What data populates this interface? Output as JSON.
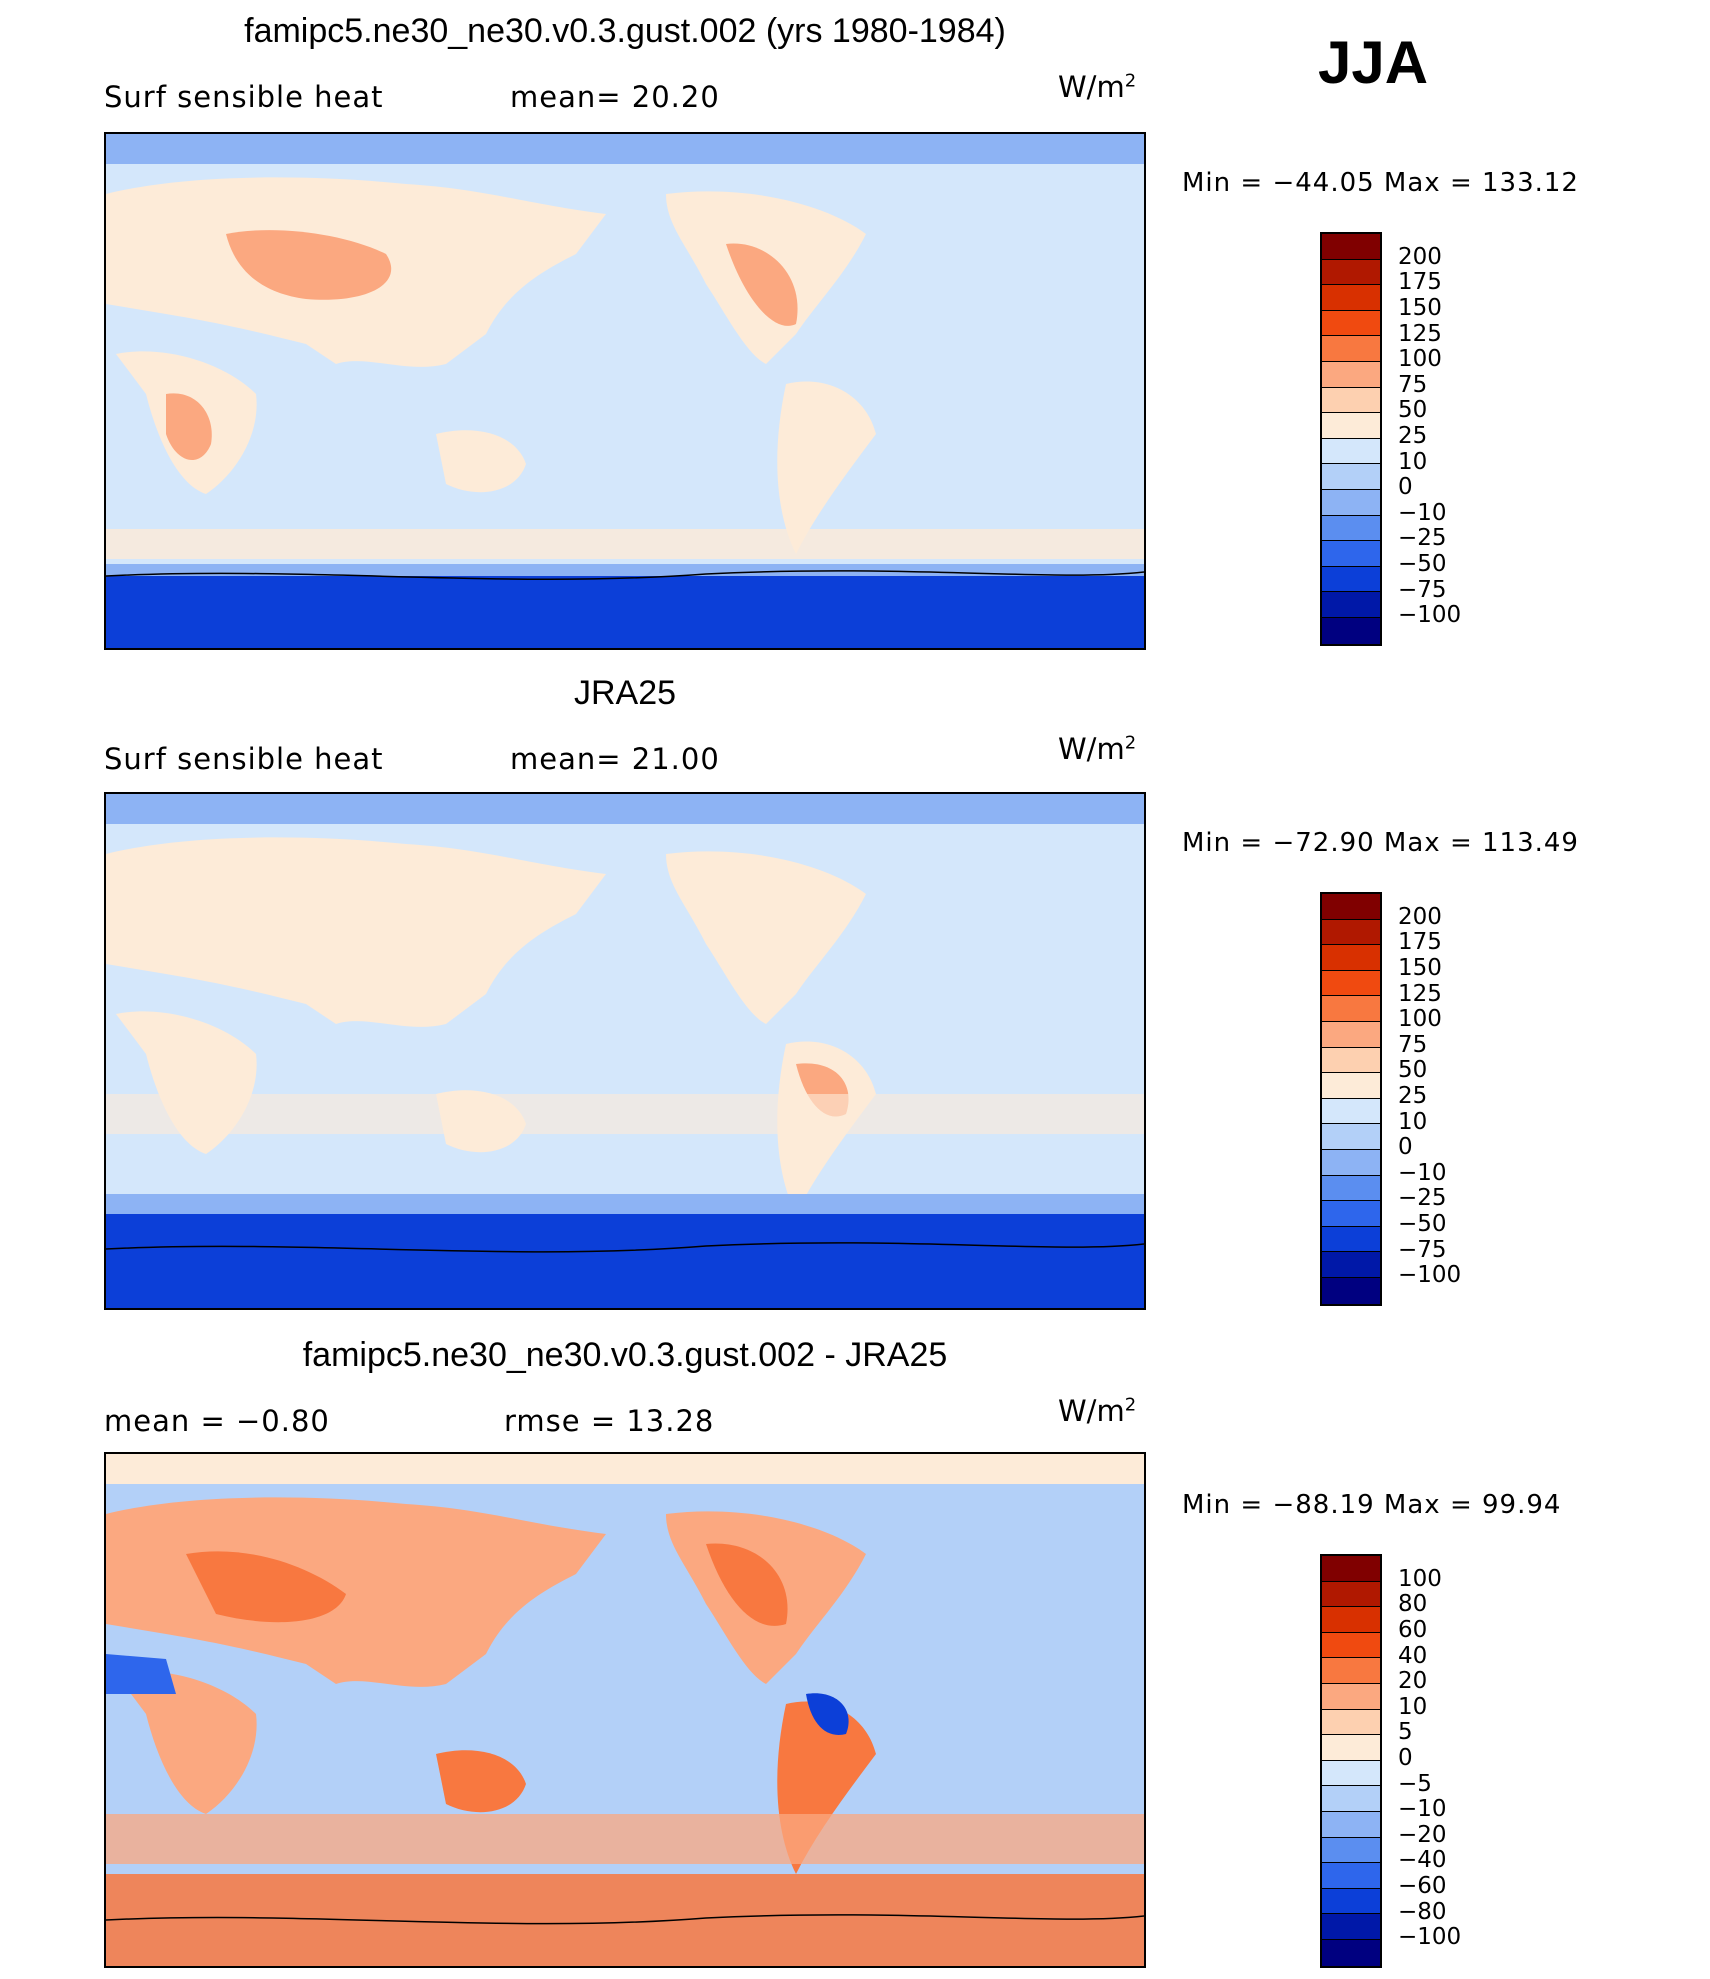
{
  "season": "JJA",
  "units": {
    "base": "W/m",
    "exp": "2"
  },
  "panels": [
    {
      "id": "model",
      "title": "famipc5.ne30_ne30.v0.3.gust.002 (yrs 1980-1984)",
      "left_text": "Surf  sensible  heat",
      "right_text": "mean=   20.20",
      "min_max": "Min  =  −44.05  Max  =  133.12",
      "levels": [
        "200",
        "175",
        "150",
        "125",
        "100",
        "75",
        "50",
        "25",
        "10",
        "0",
        "−10",
        "−25",
        "−50",
        "−75",
        "−100"
      ],
      "colors": [
        "#800000",
        "#b01800",
        "#d83000",
        "#f04a10",
        "#f87840",
        "#fba880",
        "#fdd0b0",
        "#fdebd8",
        "#d4e7fb",
        "#b3d0f8",
        "#8db3f4",
        "#5b8ef0",
        "#2e66ec",
        "#0c3fd8",
        "#0018a8",
        "#000080"
      ]
    },
    {
      "id": "obs",
      "title": "JRA25",
      "left_text": "Surf  sensible  heat",
      "right_text": "mean=   21.00",
      "min_max": "Min  =  −72.90  Max  =  113.49",
      "levels": [
        "200",
        "175",
        "150",
        "125",
        "100",
        "75",
        "50",
        "25",
        "10",
        "0",
        "−10",
        "−25",
        "−50",
        "−75",
        "−100"
      ],
      "colors": [
        "#800000",
        "#b01800",
        "#d83000",
        "#f04a10",
        "#f87840",
        "#fba880",
        "#fdd0b0",
        "#fdebd8",
        "#d4e7fb",
        "#b3d0f8",
        "#8db3f4",
        "#5b8ef0",
        "#2e66ec",
        "#0c3fd8",
        "#0018a8",
        "#000080"
      ]
    },
    {
      "id": "diff",
      "title": "famipc5.ne30_ne30.v0.3.gust.002 - JRA25",
      "left_text": "mean  =    −0.80",
      "right_text": "rmse  =    13.28",
      "min_max": "Min  =  −88.19  Max  =    99.94",
      "levels": [
        "100",
        "80",
        "60",
        "40",
        "20",
        "10",
        "5",
        "0",
        "−5",
        "−10",
        "−20",
        "−40",
        "−60",
        "−80",
        "−100"
      ],
      "colors": [
        "#800000",
        "#b01800",
        "#d83000",
        "#f04a10",
        "#f87840",
        "#fba880",
        "#fdd0b0",
        "#fdebd8",
        "#d4e7fb",
        "#b3d0f8",
        "#8db3f4",
        "#5b8ef0",
        "#2e66ec",
        "#0c3fd8",
        "#0018a8",
        "#000080"
      ]
    }
  ]
}
